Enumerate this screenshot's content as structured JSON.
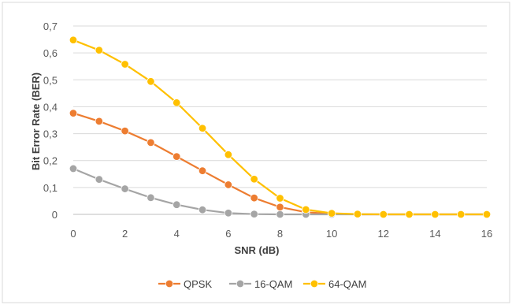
{
  "chart_data": {
    "type": "line",
    "title": "",
    "xlabel": "SNR (dB)",
    "ylabel": "Bit Error Rate (BER)",
    "xlim": [
      0,
      16
    ],
    "ylim": [
      0,
      0.7
    ],
    "x_ticks": [
      "0",
      "2",
      "4",
      "6",
      "8",
      "10",
      "12",
      "14",
      "16"
    ],
    "y_ticks": [
      "0",
      "0,1",
      "0,2",
      "0,3",
      "0,4",
      "0,5",
      "0,6",
      "0,7"
    ],
    "grid": "horizontal",
    "legend_position": "bottom",
    "x": [
      0,
      1,
      2,
      3,
      4,
      5,
      6,
      7,
      8,
      9,
      10,
      11,
      12,
      13,
      14,
      15,
      16
    ],
    "series": [
      {
        "name": "QPSK",
        "color": "#ED7D31",
        "values": [
          0.376,
          0.346,
          0.31,
          0.267,
          0.215,
          0.162,
          0.11,
          0.061,
          0.027,
          0.008,
          0.002,
          0,
          0,
          0,
          0,
          0,
          0
        ]
      },
      {
        "name": "16-QAM",
        "color": "#A5A5A5",
        "values": [
          0.17,
          0.13,
          0.095,
          0.062,
          0.036,
          0.017,
          0.005,
          0.001,
          0,
          0,
          0,
          0,
          0,
          0,
          0,
          0,
          0
        ]
      },
      {
        "name": "64-QAM",
        "color": "#FFC000",
        "values": [
          0.648,
          0.61,
          0.558,
          0.494,
          0.415,
          0.32,
          0.222,
          0.131,
          0.06,
          0.018,
          0.004,
          0.001,
          0,
          0,
          0,
          0,
          0
        ]
      }
    ]
  }
}
